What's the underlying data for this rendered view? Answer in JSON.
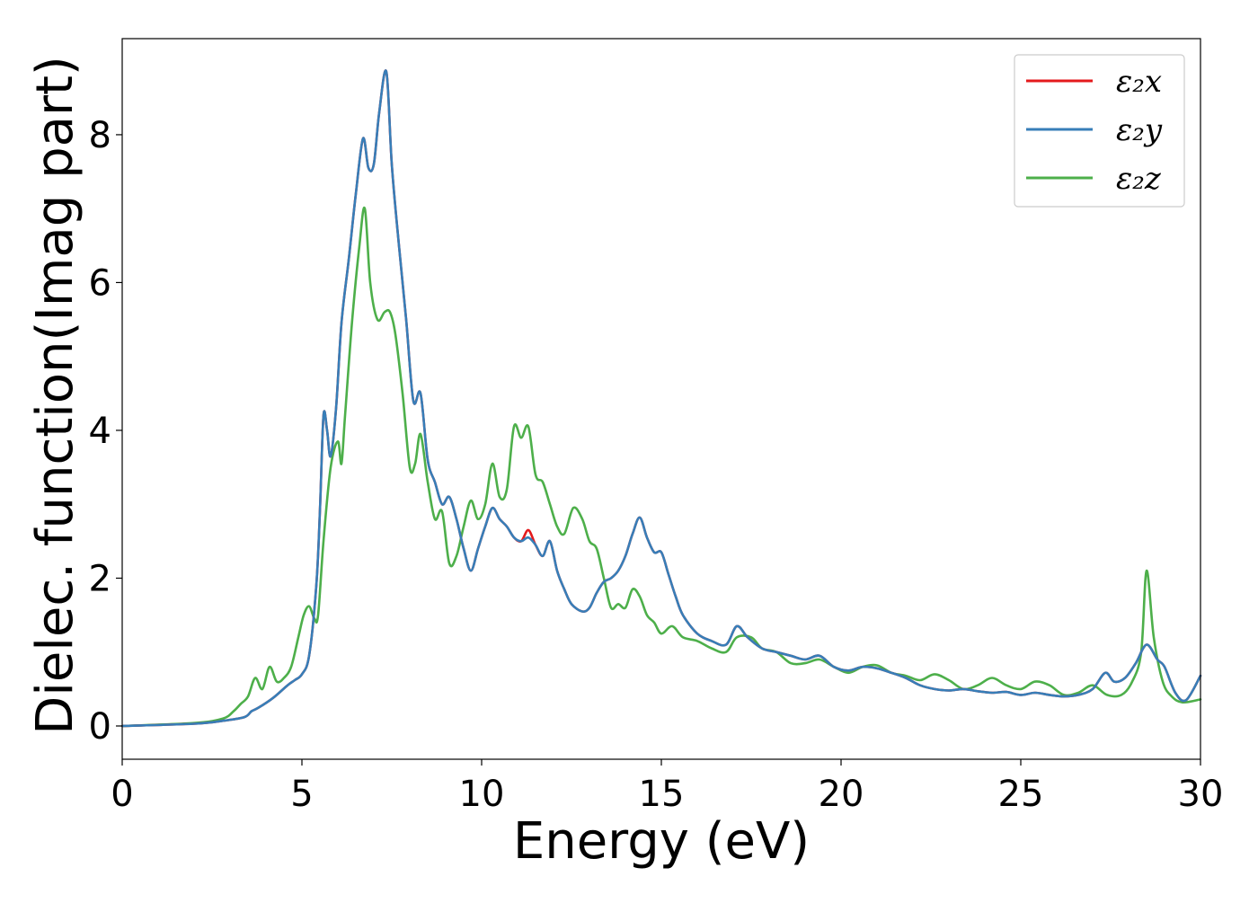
{
  "chart_data": {
    "type": "line",
    "title": "",
    "xlabel": "Energy (eV)",
    "ylabel": "Dielec. function(Imag part)",
    "xlim": [
      0,
      30
    ],
    "ylim": [
      -0.45,
      9.3
    ],
    "xticks": [
      0,
      5,
      10,
      15,
      20,
      25,
      30
    ],
    "yticks": [
      0,
      2,
      4,
      6,
      8
    ],
    "grid": false,
    "legend": {
      "position": "top-right"
    },
    "series": [
      {
        "name": "ε₂x",
        "color": "#e41a1c",
        "x": [
          0,
          2,
          2.8,
          3.4,
          3.6,
          3.8,
          4.2,
          4.6,
          4.8,
          5.0,
          5.2,
          5.4,
          5.5,
          5.6,
          5.7,
          5.8,
          5.95,
          6.1,
          6.3,
          6.5,
          6.7,
          6.85,
          7.0,
          7.15,
          7.35,
          7.5,
          7.7,
          7.9,
          8.1,
          8.3,
          8.5,
          8.7,
          8.9,
          9.1,
          9.3,
          9.5,
          9.7,
          9.9,
          10.1,
          10.3,
          10.5,
          10.7,
          10.9,
          11.1,
          11.3,
          11.5,
          11.7,
          11.9,
          12.1,
          12.3,
          12.5,
          12.8,
          13.0,
          13.2,
          13.4,
          13.6,
          13.8,
          14.0,
          14.2,
          14.4,
          14.6,
          14.8,
          15.0,
          15.2,
          15.4,
          15.6,
          16.0,
          16.4,
          16.8,
          17.1,
          17.4,
          17.8,
          18.2,
          18.6,
          19.0,
          19.4,
          19.8,
          20.2,
          20.6,
          21.0,
          21.4,
          21.8,
          22.2,
          22.6,
          23.0,
          23.4,
          23.8,
          24.2,
          24.6,
          25.0,
          25.4,
          25.8,
          26.2,
          26.6,
          27.0,
          27.35,
          27.6,
          27.9,
          28.2,
          28.5,
          28.8,
          29.0,
          29.3,
          29.6,
          30.0
        ],
        "y": [
          0,
          0.03,
          0.07,
          0.12,
          0.2,
          0.25,
          0.38,
          0.55,
          0.62,
          0.7,
          0.95,
          1.9,
          2.9,
          4.2,
          4.0,
          3.65,
          4.3,
          5.45,
          6.3,
          7.2,
          7.95,
          7.55,
          7.6,
          8.3,
          8.85,
          7.6,
          6.5,
          5.5,
          4.4,
          4.5,
          3.6,
          3.3,
          3.0,
          3.1,
          2.8,
          2.4,
          2.1,
          2.4,
          2.7,
          2.95,
          2.8,
          2.7,
          2.55,
          2.5,
          2.65,
          2.45,
          2.3,
          2.5,
          2.1,
          1.85,
          1.65,
          1.55,
          1.6,
          1.8,
          1.95,
          2.0,
          2.1,
          2.3,
          2.6,
          2.82,
          2.55,
          2.35,
          2.35,
          2.05,
          1.75,
          1.5,
          1.25,
          1.15,
          1.1,
          1.35,
          1.2,
          1.05,
          1.0,
          0.95,
          0.9,
          0.95,
          0.8,
          0.75,
          0.8,
          0.78,
          0.72,
          0.65,
          0.55,
          0.5,
          0.48,
          0.5,
          0.47,
          0.45,
          0.46,
          0.42,
          0.45,
          0.42,
          0.4,
          0.42,
          0.5,
          0.72,
          0.6,
          0.65,
          0.85,
          1.1,
          0.9,
          0.8,
          0.45,
          0.35,
          0.68
        ]
      },
      {
        "name": "ε₂y",
        "color": "#377eb8",
        "x": [
          0,
          2,
          2.8,
          3.4,
          3.6,
          3.8,
          4.2,
          4.6,
          4.8,
          5.0,
          5.2,
          5.4,
          5.5,
          5.6,
          5.7,
          5.8,
          5.95,
          6.1,
          6.3,
          6.5,
          6.7,
          6.85,
          7.0,
          7.15,
          7.35,
          7.5,
          7.7,
          7.9,
          8.1,
          8.3,
          8.5,
          8.7,
          8.9,
          9.1,
          9.3,
          9.5,
          9.7,
          9.9,
          10.1,
          10.3,
          10.5,
          10.7,
          10.9,
          11.1,
          11.3,
          11.5,
          11.7,
          11.9,
          12.1,
          12.3,
          12.5,
          12.8,
          13.0,
          13.2,
          13.4,
          13.6,
          13.8,
          14.0,
          14.2,
          14.4,
          14.6,
          14.8,
          15.0,
          15.2,
          15.4,
          15.6,
          16.0,
          16.4,
          16.8,
          17.1,
          17.4,
          17.8,
          18.2,
          18.6,
          19.0,
          19.4,
          19.8,
          20.2,
          20.6,
          21.0,
          21.4,
          21.8,
          22.2,
          22.6,
          23.0,
          23.4,
          23.8,
          24.2,
          24.6,
          25.0,
          25.4,
          25.8,
          26.2,
          26.6,
          27.0,
          27.35,
          27.6,
          27.9,
          28.2,
          28.5,
          28.8,
          29.0,
          29.3,
          29.6,
          30.0
        ],
        "y": [
          0,
          0.03,
          0.07,
          0.12,
          0.2,
          0.25,
          0.38,
          0.55,
          0.62,
          0.7,
          0.95,
          1.9,
          2.9,
          4.2,
          4.0,
          3.65,
          4.3,
          5.45,
          6.3,
          7.2,
          7.95,
          7.55,
          7.6,
          8.3,
          8.85,
          7.6,
          6.5,
          5.5,
          4.4,
          4.5,
          3.6,
          3.3,
          3.0,
          3.1,
          2.8,
          2.4,
          2.1,
          2.4,
          2.7,
          2.95,
          2.8,
          2.7,
          2.55,
          2.5,
          2.55,
          2.45,
          2.3,
          2.5,
          2.1,
          1.85,
          1.65,
          1.55,
          1.6,
          1.8,
          1.95,
          2.0,
          2.1,
          2.3,
          2.6,
          2.82,
          2.55,
          2.35,
          2.35,
          2.05,
          1.75,
          1.5,
          1.25,
          1.15,
          1.1,
          1.35,
          1.2,
          1.05,
          1.0,
          0.95,
          0.9,
          0.95,
          0.8,
          0.75,
          0.8,
          0.78,
          0.72,
          0.65,
          0.55,
          0.5,
          0.48,
          0.5,
          0.47,
          0.45,
          0.46,
          0.42,
          0.45,
          0.42,
          0.4,
          0.42,
          0.5,
          0.72,
          0.6,
          0.65,
          0.85,
          1.1,
          0.9,
          0.8,
          0.45,
          0.35,
          0.68
        ]
      },
      {
        "name": "ε₂z",
        "color": "#4daf4a",
        "x": [
          0,
          2,
          2.8,
          3.1,
          3.3,
          3.5,
          3.7,
          3.9,
          4.1,
          4.3,
          4.5,
          4.7,
          4.9,
          5.05,
          5.2,
          5.35,
          5.45,
          5.6,
          5.8,
          6.0,
          6.1,
          6.2,
          6.4,
          6.6,
          6.75,
          6.9,
          7.1,
          7.3,
          7.45,
          7.6,
          7.8,
          8.0,
          8.15,
          8.3,
          8.5,
          8.7,
          8.9,
          9.1,
          9.3,
          9.5,
          9.7,
          9.9,
          10.1,
          10.3,
          10.5,
          10.7,
          10.9,
          11.1,
          11.3,
          11.5,
          11.7,
          11.9,
          12.1,
          12.3,
          12.55,
          12.8,
          13.0,
          13.2,
          13.4,
          13.6,
          13.8,
          14.0,
          14.2,
          14.4,
          14.6,
          14.8,
          15.0,
          15.3,
          15.6,
          16.0,
          16.4,
          16.8,
          17.1,
          17.5,
          17.8,
          18.2,
          18.6,
          19.0,
          19.4,
          19.8,
          20.2,
          20.6,
          21.0,
          21.4,
          21.8,
          22.2,
          22.6,
          23.0,
          23.4,
          23.8,
          24.2,
          24.6,
          25.0,
          25.4,
          25.8,
          26.2,
          26.6,
          27.0,
          27.4,
          27.8,
          28.1,
          28.35,
          28.5,
          28.7,
          28.95,
          29.2,
          29.5,
          30.0
        ],
        "y": [
          0,
          0.04,
          0.1,
          0.2,
          0.3,
          0.4,
          0.65,
          0.5,
          0.8,
          0.6,
          0.65,
          0.8,
          1.2,
          1.5,
          1.62,
          1.45,
          1.5,
          2.5,
          3.5,
          3.85,
          3.55,
          4.2,
          5.5,
          6.5,
          7.0,
          6.0,
          5.5,
          5.6,
          5.6,
          5.3,
          4.5,
          3.5,
          3.55,
          3.95,
          3.3,
          2.8,
          2.9,
          2.2,
          2.3,
          2.7,
          3.05,
          2.8,
          3.0,
          3.55,
          3.1,
          3.2,
          4.05,
          3.9,
          4.05,
          3.4,
          3.3,
          3.0,
          2.7,
          2.6,
          2.95,
          2.8,
          2.5,
          2.4,
          2.0,
          1.6,
          1.65,
          1.6,
          1.85,
          1.75,
          1.5,
          1.4,
          1.25,
          1.35,
          1.2,
          1.15,
          1.05,
          1.0,
          1.2,
          1.2,
          1.05,
          1.0,
          0.85,
          0.85,
          0.9,
          0.8,
          0.72,
          0.8,
          0.82,
          0.72,
          0.68,
          0.62,
          0.7,
          0.62,
          0.5,
          0.55,
          0.65,
          0.55,
          0.5,
          0.6,
          0.55,
          0.42,
          0.45,
          0.55,
          0.42,
          0.42,
          0.6,
          1.0,
          2.1,
          1.2,
          0.6,
          0.4,
          0.32,
          0.36
        ]
      }
    ]
  }
}
